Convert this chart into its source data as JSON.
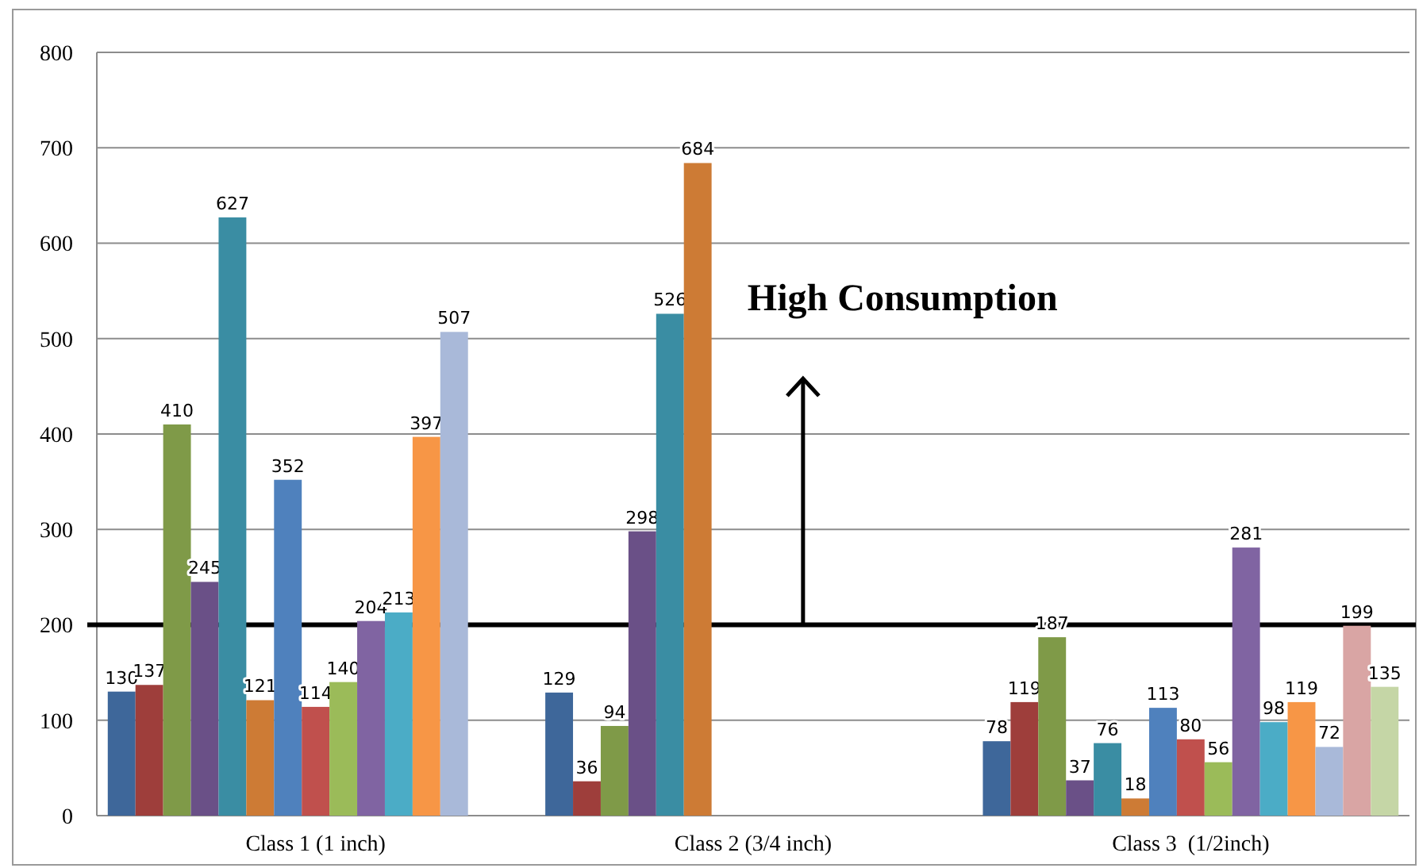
{
  "chart_data": {
    "type": "bar",
    "categories": [
      "Class 1 (1 inch)",
      "Class 2 (3/4 inch)",
      "Class 3  (1/2inch)"
    ],
    "series": [
      {
        "color": "#3e679a",
        "values": [
          130,
          129,
          78
        ]
      },
      {
        "color": "#9e3e3b",
        "values": [
          137,
          36,
          119
        ]
      },
      {
        "color": "#7f9a48",
        "values": [
          410,
          94,
          187
        ]
      },
      {
        "color": "#6a5087",
        "values": [
          245,
          298,
          37
        ]
      },
      {
        "color": "#3a8da3",
        "values": [
          627,
          526,
          76
        ]
      },
      {
        "color": "#cd7b35",
        "values": [
          121,
          684,
          18
        ]
      },
      {
        "color": "#4f81bd",
        "values": [
          352,
          null,
          113
        ]
      },
      {
        "color": "#c0504d",
        "values": [
          114,
          null,
          80
        ]
      },
      {
        "color": "#9bbb59",
        "values": [
          140,
          null,
          56
        ]
      },
      {
        "color": "#8064a2",
        "values": [
          204,
          null,
          281
        ]
      },
      {
        "color": "#4bacc6",
        "values": [
          213,
          null,
          98
        ]
      },
      {
        "color": "#f79646",
        "values": [
          397,
          null,
          119
        ]
      },
      {
        "color": "#a9b9d9",
        "values": [
          507,
          null,
          72
        ]
      },
      {
        "color": "#d9a5a4",
        "values": [
          null,
          null,
          199
        ]
      },
      {
        "color": "#c5d6a6",
        "values": [
          null,
          null,
          135
        ]
      }
    ],
    "ylim": [
      0,
      800
    ],
    "yticks": [
      0,
      100,
      200,
      300,
      400,
      500,
      600,
      700,
      800
    ],
    "grid": "y",
    "data_labels": true,
    "ref_lines": [
      {
        "axis": "y",
        "value": 200,
        "label": "High Consumption",
        "color": "#000000"
      }
    ]
  }
}
